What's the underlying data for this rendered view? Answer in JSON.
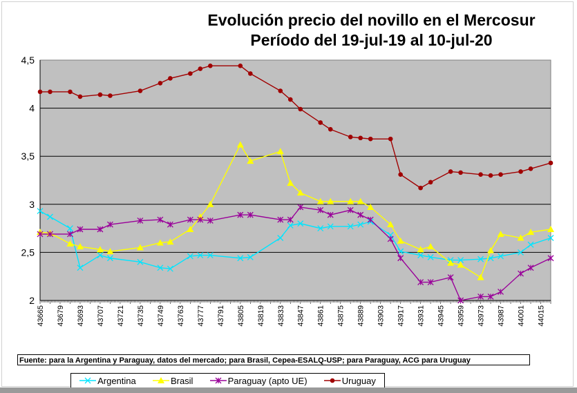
{
  "chart_data": {
    "type": "line",
    "title": "Evolución precio del novillo en el Mercosur",
    "subtitle": "Período del 19-jul-19 al 10-jul-20",
    "xlabel": "",
    "ylabel": "",
    "ylim": [
      2,
      4.5
    ],
    "xlim": [
      43665,
      44022
    ],
    "yticks": [
      "2",
      "2,5",
      "3",
      "3,5",
      "4",
      "4,5"
    ],
    "ytick_values": [
      2,
      2.5,
      3,
      3.5,
      4,
      4.5
    ],
    "xticks": [
      "43665",
      "43679",
      "43693",
      "43707",
      "43721",
      "43735",
      "43749",
      "43763",
      "43777",
      "43791",
      "43805",
      "43819",
      "43833",
      "43847",
      "43861",
      "43875",
      "43889",
      "43903",
      "43917",
      "43931",
      "43945",
      "43959",
      "43973",
      "43987",
      "44001",
      "44015"
    ],
    "grid": true,
    "legend_position": "bottom",
    "x": [
      43665,
      43672,
      43686,
      43693,
      43707,
      43714,
      43735,
      43749,
      43756,
      43770,
      43777,
      43784,
      43805,
      43812,
      43833,
      43840,
      43847,
      43861,
      43868,
      43882,
      43889,
      43896,
      43910,
      43917,
      43931,
      43938,
      43952,
      43959,
      43973,
      43980,
      43987,
      44001,
      44008,
      44022
    ],
    "series": [
      {
        "name": "Argentina",
        "color": "#00e5ff",
        "marker": "x",
        "values": [
          2.93,
          2.87,
          2.75,
          2.34,
          2.47,
          2.44,
          2.4,
          2.34,
          2.33,
          2.46,
          2.47,
          2.47,
          2.44,
          2.45,
          2.65,
          2.78,
          2.8,
          2.75,
          2.77,
          2.77,
          2.79,
          2.82,
          2.68,
          2.51,
          2.47,
          2.45,
          2.42,
          2.42,
          2.43,
          2.44,
          2.46,
          2.5,
          2.58,
          2.65
        ]
      },
      {
        "name": "Brasil",
        "color": "#ffff00",
        "marker": "triangle",
        "values": [
          2.71,
          2.7,
          2.59,
          2.56,
          2.53,
          2.51,
          2.55,
          2.6,
          2.61,
          2.74,
          2.87,
          3.0,
          3.62,
          3.45,
          3.55,
          3.22,
          3.12,
          3.03,
          3.03,
          3.03,
          3.03,
          2.97,
          2.79,
          2.62,
          2.53,
          2.56,
          2.39,
          2.37,
          2.24,
          2.52,
          2.69,
          2.65,
          2.71,
          2.74
        ]
      },
      {
        "name": "Paraguay (apto UE)",
        "color": "#990099",
        "marker": "star",
        "values": [
          2.69,
          2.69,
          2.69,
          2.74,
          2.74,
          2.79,
          2.83,
          2.84,
          2.79,
          2.84,
          2.84,
          2.83,
          2.89,
          2.89,
          2.84,
          2.84,
          2.97,
          2.94,
          2.89,
          2.94,
          2.89,
          2.84,
          2.64,
          2.44,
          2.19,
          2.19,
          2.24,
          2.0,
          2.04,
          2.04,
          2.09,
          2.28,
          2.34,
          2.44
        ]
      },
      {
        "name": "Uruguay",
        "color": "#a00000",
        "marker": "circle",
        "values": [
          4.17,
          4.17,
          4.17,
          4.12,
          4.14,
          4.13,
          4.18,
          4.26,
          4.31,
          4.36,
          4.41,
          4.44,
          4.44,
          4.36,
          4.18,
          4.09,
          3.99,
          3.85,
          3.78,
          3.7,
          3.69,
          3.68,
          3.68,
          3.31,
          3.17,
          3.23,
          3.34,
          3.33,
          3.31,
          3.3,
          3.31,
          3.34,
          3.37,
          3.43
        ]
      }
    ]
  },
  "footer": "Fuente: para la Argentina y Paraguay, datos del mercado; para Brasil, Cepea-ESALQ-USP; para Paraguay, ACG para Uruguay",
  "colors": {
    "plot_background": "#c0c0c0",
    "gridline": "#000000"
  }
}
